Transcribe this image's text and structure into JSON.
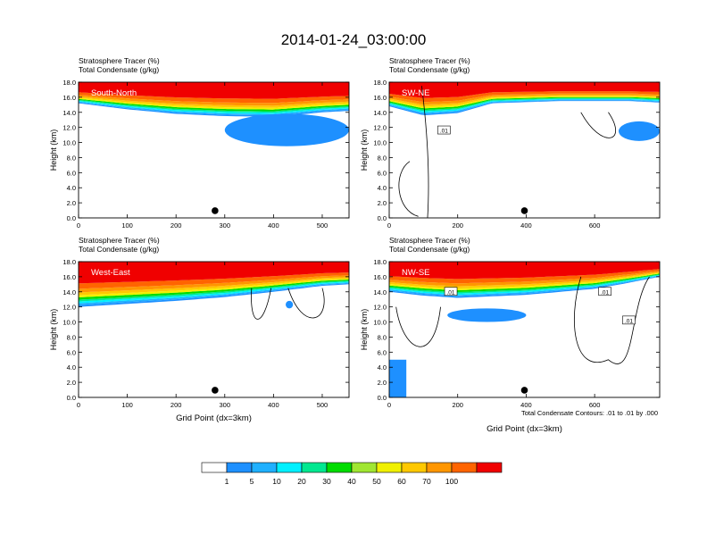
{
  "figure": {
    "title": "2014-01-24_03:00:00",
    "contour_note": "Total Condensate Contours: .01 to .01 by .000",
    "colorbar": {
      "labels": [
        "1",
        "5",
        "10",
        "20",
        "30",
        "40",
        "50",
        "60",
        "70",
        "100"
      ],
      "colors": [
        "#ffffff",
        "#1e90ff",
        "#1fb0ff",
        "#00f0ff",
        "#00e890",
        "#00dc00",
        "#a0e632",
        "#f0f000",
        "#ffc800",
        "#ff9600",
        "#ff6400",
        "#f00000"
      ]
    }
  },
  "chart_data": [
    {
      "type": "heatmap",
      "name": "South-North",
      "title": "Stratosphere Tracer   (%)",
      "subtitle": "Total Condensate   (g/kg)",
      "panel_label": "South-North",
      "xlabel": "",
      "ylabel": "Height (km)",
      "xlim": [
        0,
        555
      ],
      "ylim": [
        0,
        18
      ],
      "xticks": [
        0,
        100,
        200,
        300,
        400,
        500
      ],
      "yticks": [
        "0.0",
        "2.0",
        "4.0",
        "6.0",
        "8.0",
        "10.0",
        "12.0",
        "14.0",
        "16.0",
        "18.0"
      ],
      "marker_x": 280,
      "contour_labels": [],
      "tracer_layer": {
        "x": [
          0,
          100,
          200,
          300,
          400,
          500,
          555
        ],
        "base_km": [
          15.2,
          14.4,
          13.8,
          13.5,
          13.4,
          14.0,
          14.2
        ],
        "top_km": 18
      },
      "blue_patch": {
        "x_range": [
          300,
          555
        ],
        "y_range": [
          9.5,
          13.8
        ]
      }
    },
    {
      "type": "heatmap",
      "name": "SW-NE",
      "title": "Stratosphere Tracer   (%)",
      "subtitle": "Total Condensate   (g/kg)",
      "panel_label": "SW-NE",
      "xlabel": "",
      "ylabel": "Height (km)",
      "xlim": [
        0,
        790
      ],
      "ylim": [
        0,
        18
      ],
      "xticks": [
        0,
        200,
        400,
        600
      ],
      "yticks": [
        "0.0",
        "2.0",
        "4.0",
        "6.0",
        "8.0",
        "10.0",
        "12.0",
        "14.0",
        "16.0",
        "18.0"
      ],
      "marker_x": 395,
      "contour_labels": [
        ".01"
      ],
      "tracer_layer": {
        "x": [
          0,
          100,
          200,
          300,
          500,
          700,
          790
        ],
        "base_km": [
          14.8,
          13.6,
          13.9,
          15.2,
          15.5,
          15.5,
          15.3
        ],
        "top_km": 18
      },
      "blue_patch": {
        "x_range": [
          670,
          790
        ],
        "y_range": [
          10.2,
          12.8
        ]
      }
    },
    {
      "type": "heatmap",
      "name": "West-East",
      "title": "Stratosphere Tracer   (%)",
      "subtitle": "Total Condensate   (g/kg)",
      "panel_label": "West-East",
      "xlabel": "Grid Point (dx=3km)",
      "ylabel": "Height (km)",
      "xlim": [
        0,
        555
      ],
      "ylim": [
        0,
        18
      ],
      "xticks": [
        0,
        100,
        200,
        300,
        400,
        500
      ],
      "yticks": [
        "0.0",
        "2.0",
        "4.0",
        "6.0",
        "8.0",
        "10.0",
        "12.0",
        "14.0",
        "16.0",
        "18.0"
      ],
      "marker_x": 280,
      "contour_labels": [],
      "tracer_layer": {
        "x": [
          0,
          100,
          200,
          300,
          400,
          500,
          555
        ],
        "base_km": [
          12.0,
          12.4,
          12.8,
          13.3,
          14.0,
          14.8,
          15.0
        ],
        "top_km": 18
      },
      "blue_patch": {
        "x_range": [
          425,
          440
        ],
        "y_range": [
          11.8,
          12.8
        ]
      }
    },
    {
      "type": "heatmap",
      "name": "NW-SE",
      "title": "Stratosphere Tracer   (%)",
      "subtitle": "Total Condensate   (g/kg)",
      "panel_label": "NW-SE",
      "xlabel": "Grid Point (dx=3km)",
      "ylabel": "Height (km)",
      "xlim": [
        0,
        790
      ],
      "ylim": [
        0,
        18
      ],
      "xticks": [
        0,
        200,
        400,
        600
      ],
      "yticks": [
        "0.0",
        "2.0",
        "4.0",
        "6.0",
        "8.0",
        "10.0",
        "12.0",
        "14.0",
        "16.0",
        "18.0"
      ],
      "marker_x": 395,
      "contour_labels": [
        ".01",
        ".01",
        ".01"
      ],
      "tracer_layer": {
        "x": [
          0,
          100,
          200,
          400,
          600,
          700,
          790
        ],
        "base_km": [
          14.0,
          13.5,
          13.2,
          13.6,
          14.4,
          15.2,
          16.0
        ],
        "top_km": 18
      },
      "blue_patch": {
        "x_range": [
          170,
          400
        ],
        "y_range": [
          10.0,
          11.8
        ]
      }
    }
  ]
}
